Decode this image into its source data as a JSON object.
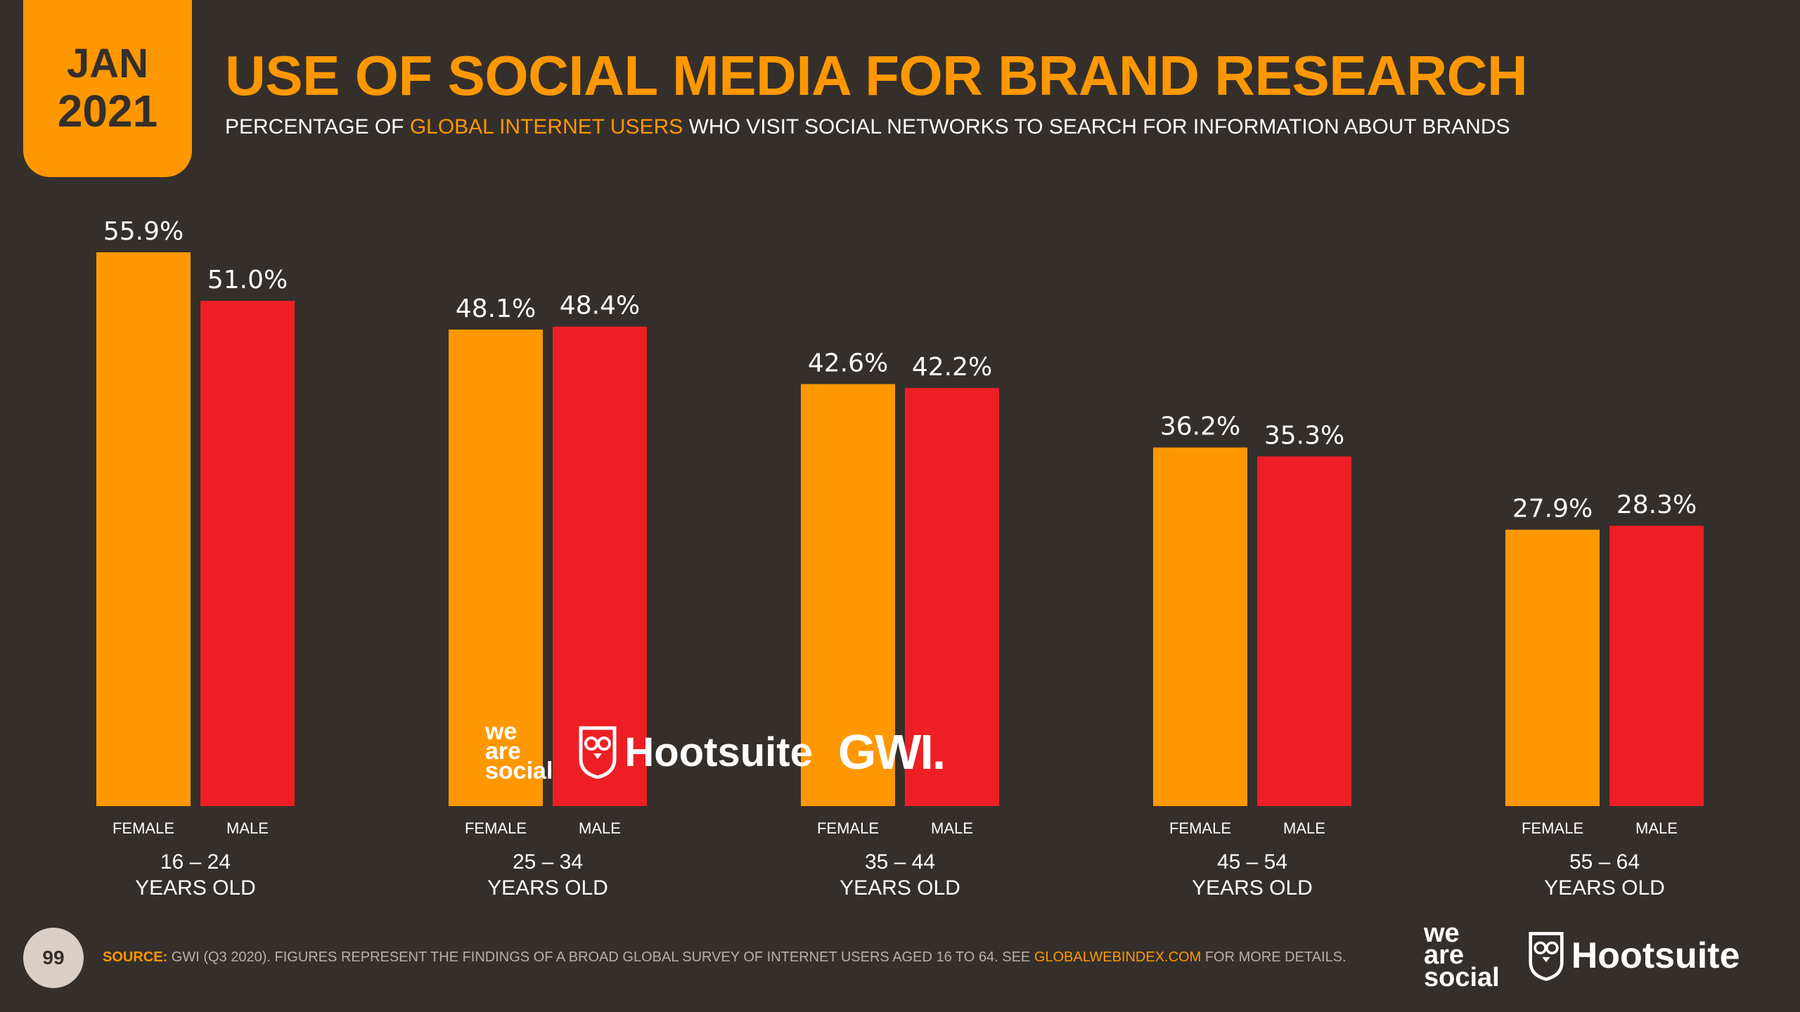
{
  "header": {
    "date_month": "JAN",
    "date_year": "2021",
    "title": "USE OF SOCIAL MEDIA FOR BRAND RESEARCH",
    "subtitle_pre": "PERCENTAGE OF ",
    "subtitle_highlight": "GLOBAL INTERNET USERS",
    "subtitle_post": " WHO VISIT SOCIAL NETWORKS TO SEARCH FOR INFORMATION ABOUT BRANDS"
  },
  "brands": {
    "we_are_social": [
      "we",
      "are",
      "social"
    ],
    "hootsuite": "Hootsuite",
    "gwi": "GWI."
  },
  "footer": {
    "page_number": "99",
    "source_label": "SOURCE:",
    "source_text": " GWI (Q3 2020). FIGURES REPRESENT THE FINDINGS OF A BROAD GLOBAL SURVEY OF INTERNET USERS AGED 16 TO 64. SEE ",
    "source_link": "GLOBALWEBINDEX.COM",
    "source_end": " FOR MORE DETAILS."
  },
  "colors": {
    "background": "#352f2b",
    "female": "#ff9800",
    "male": "#ee1f24",
    "accent": "#ff9800"
  },
  "chart_data": {
    "type": "bar",
    "categories": [
      {
        "range": "16 – 24",
        "unit": "YEARS OLD"
      },
      {
        "range": "25 – 34",
        "unit": "YEARS OLD"
      },
      {
        "range": "35 – 44",
        "unit": "YEARS OLD"
      },
      {
        "range": "45 – 54",
        "unit": "YEARS OLD"
      },
      {
        "range": "55 – 64",
        "unit": "YEARS OLD"
      }
    ],
    "series": [
      {
        "name": "FEMALE",
        "values": [
          55.9,
          48.1,
          42.6,
          36.2,
          27.9
        ],
        "labels": [
          "55.9%",
          "48.1%",
          "42.6%",
          "36.2%",
          "27.9%"
        ]
      },
      {
        "name": "MALE",
        "values": [
          51.0,
          48.4,
          42.2,
          35.3,
          28.3
        ],
        "labels": [
          "51.0%",
          "48.4%",
          "42.2%",
          "35.3%",
          "28.3%"
        ]
      }
    ],
    "ylim": [
      0,
      55.9
    ],
    "grid": false,
    "legend": "none"
  }
}
